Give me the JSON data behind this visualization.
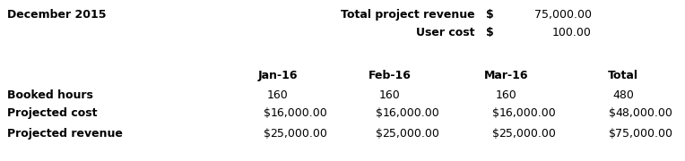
{
  "title_left": "December 2015",
  "top_labels": [
    "Total project revenue",
    "User cost"
  ],
  "top_dollar": "$",
  "top_values": [
    "75,000.00",
    "100.00"
  ],
  "col_headers": [
    "Jan-16",
    "Feb-16",
    "Mar-16",
    "Total"
  ],
  "row_labels": [
    "Booked hours",
    "Projected cost",
    "Projected revenue"
  ],
  "table_data": [
    [
      "160",
      "160",
      "160",
      "480"
    ],
    [
      "16,000.00",
      "16,000.00",
      "16,000.00",
      "48,000.00"
    ],
    [
      "25,000.00",
      "25,000.00",
      "25,000.00",
      "75,000.00"
    ]
  ],
  "has_dollar": [
    false,
    true,
    true
  ],
  "bg_color": "#ffffff",
  "text_color": "#000000",
  "font_size": 9.0,
  "fig_width": 7.64,
  "fig_height": 1.8,
  "dpi": 100
}
